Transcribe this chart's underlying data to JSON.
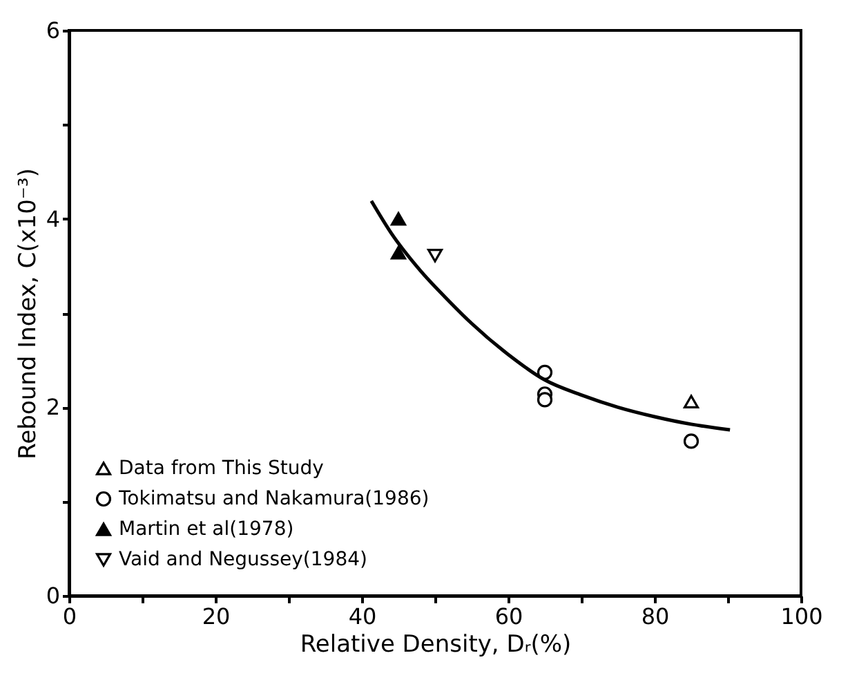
{
  "chart_data": {
    "type": "scatter",
    "xlabel": "Relative Density, Dᵣ(%)",
    "ylabel": "Rebound Index, C(x10⁻³)",
    "xlim": [
      0,
      100
    ],
    "ylim": [
      0,
      6
    ],
    "xticks": [
      0,
      {
        "value": 10,
        "label": null
      },
      20,
      {
        "value": 30,
        "label": null
      },
      40,
      {
        "value": 50,
        "label": null
      },
      60,
      {
        "value": 70,
        "label": null
      },
      80,
      {
        "value": 90,
        "label": null
      },
      100
    ],
    "yticks": [
      0,
      {
        "value": 1,
        "label": null
      },
      2,
      {
        "value": 3,
        "label": null
      },
      4,
      {
        "value": 5,
        "label": null
      },
      6
    ],
    "grid": false,
    "legend": "bottom left",
    "series": [
      {
        "name": "Data from This Study",
        "color": "#000000",
        "marker": "triangle-open",
        "x": [
          85
        ],
        "values": [
          2.06
        ]
      },
      {
        "name": "Tokimatsu and Nakamura(1986)",
        "color": "#000000",
        "marker": "circle-open",
        "x": [
          65,
          65,
          65,
          85
        ],
        "values": [
          2.37,
          2.14,
          2.08,
          1.64
        ]
      },
      {
        "name": "Martin et al(1978)",
        "color": "#000000",
        "marker": "triangle",
        "x": [
          45,
          45
        ],
        "values": [
          4.0,
          3.64
        ]
      },
      {
        "name": "Vaid and Negussey(1984)",
        "color": "#000000",
        "marker": "triangle-down-open",
        "x": [
          50
        ],
        "values": [
          3.61
        ]
      },
      {
        "type": "line",
        "color": "#000000",
        "marker": "none",
        "line_style": "solid",
        "x": [
          41.3,
          44,
          48,
          52,
          55,
          60,
          65,
          70,
          75,
          80,
          85,
          90.3
        ],
        "values": [
          4.19,
          3.85,
          3.45,
          3.12,
          2.89,
          2.56,
          2.29,
          2.13,
          2.0,
          1.9,
          1.82,
          1.76
        ]
      }
    ]
  }
}
